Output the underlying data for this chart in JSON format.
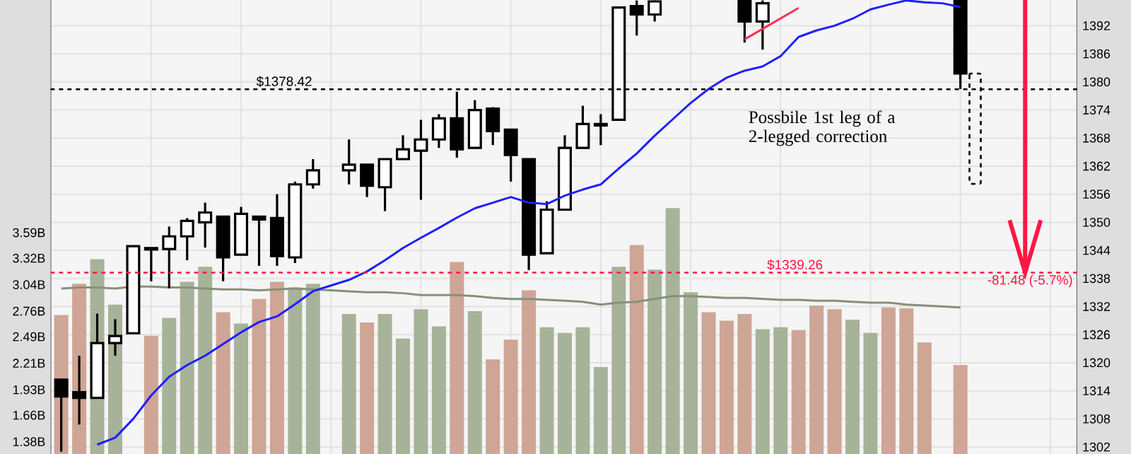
{
  "chart_data": {
    "type": "candlestick",
    "categories": [
      null,
      null,
      null,
      null,
      null,
      null,
      null,
      null,
      null,
      null,
      null,
      null,
      null,
      null,
      null,
      null,
      null,
      null,
      null,
      null,
      null,
      null,
      null,
      null,
      null,
      null,
      null,
      null,
      null,
      null,
      null,
      null,
      null,
      null,
      null,
      null,
      null,
      null,
      null,
      null,
      null,
      null,
      null,
      null,
      null,
      null,
      null,
      null,
      null,
      null,
      null
    ],
    "ohlc": [
      [
        1316.4,
        1316.4,
        1301,
        1312.8
      ],
      [
        1313.7,
        1321.5,
        1306.8,
        1312.5
      ],
      [
        1312.5,
        1330.5,
        1312.5,
        1324.2
      ],
      [
        1324.2,
        1329.3,
        1321.5,
        1325.7
      ],
      [
        1326.3,
        1344.9,
        1326.3,
        1344.9
      ],
      [
        1344.2,
        1344.6,
        1337.4,
        1344.5
      ],
      [
        1344.3,
        1349.1,
        1335.9,
        1347.0
      ],
      [
        1347.0,
        1350.9,
        1341.9,
        1350.3
      ],
      [
        1350.0,
        1354.2,
        1344.6,
        1352.1
      ],
      [
        1351.2,
        1351.2,
        1337.4,
        1342.5
      ],
      [
        1343.1,
        1353.3,
        1343.1,
        1351.8
      ],
      [
        1351.2,
        1351.2,
        1340.7,
        1350.6
      ],
      [
        1350.9,
        1356.0,
        1340.7,
        1342.8
      ],
      [
        1342.5,
        1358.7,
        1341.3,
        1358.1
      ],
      [
        1358.1,
        1363.5,
        1357.2,
        1361.1
      ],
      null,
      [
        1361.1,
        1367.7,
        1358.1,
        1362.3
      ],
      [
        1362.3,
        1362.3,
        1355.4,
        1357.8
      ],
      [
        1357.5,
        1363.5,
        1352.4,
        1363.5
      ],
      [
        1363.5,
        1368.6,
        1363.5,
        1365.6
      ],
      [
        1365.3,
        1371.9,
        1354.8,
        1367.7
      ],
      [
        1367.7,
        1373.1,
        1365.9,
        1372.2
      ],
      [
        1372.2,
        1377.9,
        1363.8,
        1365.6
      ],
      [
        1365.9,
        1376.1,
        1365.9,
        1374.0
      ],
      [
        1374.3,
        1374.6,
        1366.5,
        1369.5
      ],
      [
        1369.8,
        1369.8,
        1358.7,
        1364.4
      ],
      [
        1363.5,
        1363.5,
        1339.8,
        1343.1
      ],
      [
        1343.4,
        1354.5,
        1343.4,
        1352.7
      ],
      [
        1352.7,
        1368.6,
        1352.7,
        1365.9
      ],
      [
        1365.9,
        1374.9,
        1365.9,
        1371.0
      ],
      [
        1370.7,
        1373.1,
        1366.5,
        1371.0
      ],
      [
        1371.9,
        1395.9,
        1371.9,
        1395.9
      ],
      [
        1396.2,
        1397.4,
        1389.9,
        1394.4
      ],
      [
        1394.4,
        1397.4,
        1392.9,
        1397.2
      ],
      null,
      null,
      null,
      null,
      [
        1397.4,
        1397.4,
        1388.4,
        1392.9
      ],
      [
        1392.9,
        1397.4,
        1386.9,
        1396.8
      ],
      null,
      null,
      null,
      null,
      null,
      null,
      null,
      null,
      null,
      null,
      [
        1397.4,
        1397.4,
        1378.5,
        1381.8
      ]
    ],
    "series": [
      {
        "type": "bar",
        "axis": "y2",
        "values": [
          2.72,
          3.05,
          3.31,
          2.83,
          null,
          2.5,
          2.69,
          3.07,
          3.23,
          2.75,
          2.63,
          2.89,
          3.07,
          3.01,
          3.05,
          null,
          2.73,
          2.64,
          2.73,
          2.47,
          2.78,
          2.6,
          3.28,
          2.76,
          2.25,
          2.46,
          2.98,
          2.59,
          2.53,
          2.59,
          2.17,
          3.23,
          3.46,
          3.2,
          3.85,
          2.96,
          2.75,
          2.66,
          2.73,
          2.57,
          2.59,
          2.56,
          2.82,
          2.78,
          2.67,
          2.53,
          2.8,
          2.79,
          2.43,
          null,
          2.19
        ],
        "colors": [
          "#cfa595",
          "#cfa595",
          "#a7b399",
          "#a7b399",
          "#a7b399",
          "#cfa595",
          "#a7b399",
          "#a7b399",
          "#a7b399",
          "#cfa595",
          "#a7b399",
          "#cfa595",
          "#cfa595",
          "#a7b399",
          "#a7b399",
          null,
          "#a7b399",
          "#cfa595",
          "#a7b399",
          "#a7b399",
          "#a7b399",
          "#a7b399",
          "#cfa595",
          "#a7b399",
          "#cfa595",
          "#cfa595",
          "#cfa595",
          "#a7b399",
          "#a7b399",
          "#a7b399",
          "#a7b399",
          "#a7b399",
          "#cfa595",
          "#a7b399",
          "#a7b399",
          "#a7b399",
          "#cfa595",
          "#cfa595",
          "#cfa595",
          "#a7b399",
          "#a7b399",
          "#cfa595",
          "#cfa595",
          "#cfa595",
          "#a7b399",
          "#a7b399",
          "#cfa595",
          "#cfa595",
          "#cfa595",
          null,
          "#cfa595"
        ]
      },
      {
        "type": "line",
        "axis": "y2",
        "color": "#87907a",
        "values": [
          3.0,
          3.01,
          3.01,
          3.0,
          3.02,
          3.02,
          3.01,
          3.01,
          3.0,
          2.99,
          2.99,
          2.98,
          2.99,
          3.0,
          2.99,
          2.98,
          2.97,
          2.96,
          2.96,
          2.95,
          2.93,
          2.93,
          2.93,
          2.92,
          2.9,
          2.89,
          2.89,
          2.88,
          2.87,
          2.86,
          2.83,
          2.85,
          2.86,
          2.89,
          2.92,
          2.92,
          2.91,
          2.9,
          2.9,
          2.89,
          2.88,
          2.88,
          2.87,
          2.87,
          2.86,
          2.85,
          2.85,
          2.83,
          2.82,
          2.81,
          2.8
        ]
      },
      {
        "type": "line",
        "color": "#1f1fff",
        "values": [
          null,
          null,
          1302.5,
          1304.0,
          1308.0,
          1313.0,
          1317.0,
          1319.5,
          1321.5,
          1324.0,
          1326.5,
          1328.7,
          1329.9,
          1332.5,
          1335.3,
          1336.5,
          1337.7,
          1339.5,
          1341.9,
          1344.5,
          1346.7,
          1348.8,
          1351.0,
          1353.0,
          1354.2,
          1355.4,
          1354.2,
          1353.9,
          1355.7,
          1357.0,
          1358.1,
          1361.5,
          1364.7,
          1368.5,
          1372.0,
          1375.5,
          1378.5,
          1380.9,
          1382.4,
          1383.3,
          1385.5,
          1389.6,
          1391.0,
          1392.0,
          1393.5,
          1395.5,
          1396.5,
          1397.4,
          1397.0,
          1396.8,
          1396.0
        ]
      },
      {
        "type": "line",
        "color": "#ff2d55",
        "values": [
          null,
          null,
          null,
          null,
          null,
          null,
          null,
          null,
          null,
          null,
          null,
          null,
          null,
          null,
          null,
          null,
          null,
          null,
          null,
          null,
          null,
          null,
          null,
          null,
          null,
          null,
          null,
          null,
          null,
          null,
          null,
          null,
          null,
          null,
          null,
          null,
          null,
          null,
          1389.1,
          null,
          null,
          1395.8,
          null,
          null,
          null,
          null,
          null,
          null,
          null,
          null,
          null
        ]
      }
    ],
    "ylim": [
      1300.5,
      1397.5
    ],
    "yticks": [
      1302,
      1308,
      1314,
      1320,
      1326,
      1332,
      1338,
      1344,
      1350,
      1356,
      1362,
      1368,
      1374,
      1380,
      1386,
      1392
    ],
    "y2lim": [
      1.25,
      6.05
    ],
    "y2ticks": [
      {
        "value": 1.38,
        "label": "1.38B"
      },
      {
        "value": 1.66,
        "label": "1.66B"
      },
      {
        "value": 1.93,
        "label": "1.93B"
      },
      {
        "value": 2.21,
        "label": "2.21B"
      },
      {
        "value": 2.49,
        "label": "2.49B"
      },
      {
        "value": 2.76,
        "label": "2.76B"
      },
      {
        "value": 3.04,
        "label": "3.04B"
      },
      {
        "value": 3.32,
        "label": "3.32B"
      },
      {
        "value": 3.59,
        "label": "3.59B"
      }
    ],
    "ref_lines": [
      {
        "axis": "y",
        "value": 1378.42,
        "label": "$1378.42",
        "color": "#000000",
        "line_style": "dashed"
      },
      {
        "axis": "y",
        "value": 1339.26,
        "label": "$1339.26",
        "color": "#ff1744",
        "line_style": "dashed"
      }
    ],
    "annotations": [
      "Possbile 1st leg of a 2-legged correction",
      "-81.48 (-5.7%)"
    ],
    "grid": true
  }
}
